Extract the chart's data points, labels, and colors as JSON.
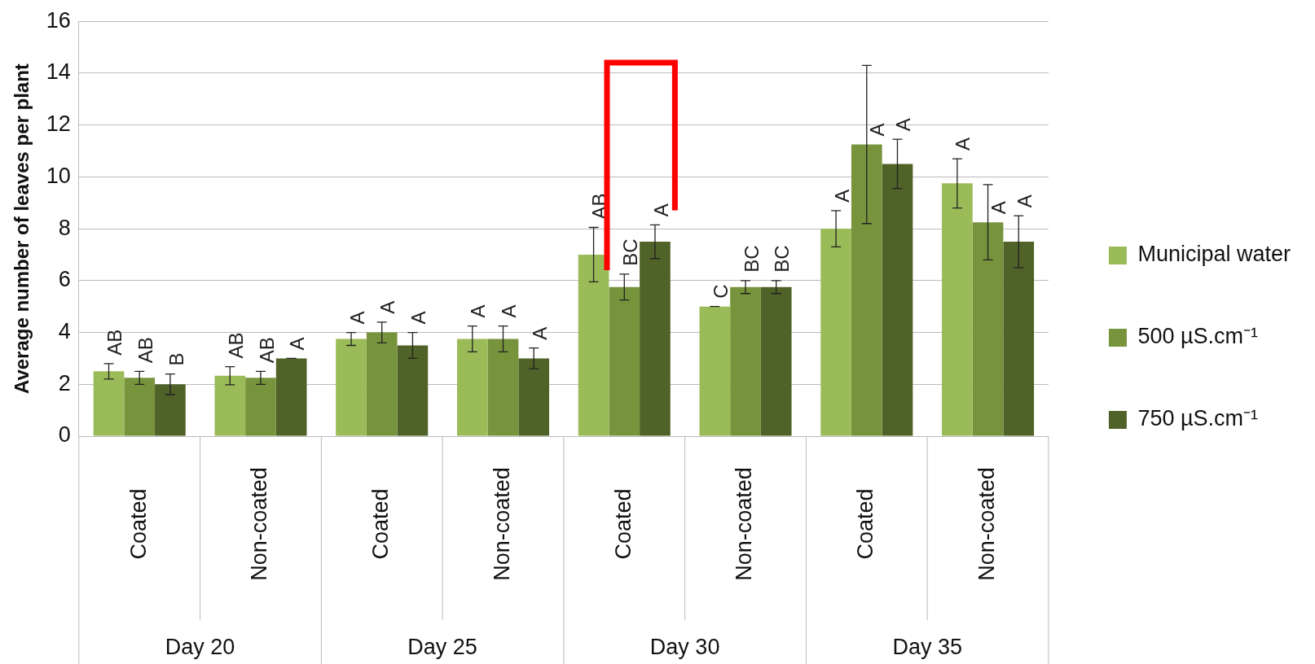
{
  "chart_data": {
    "type": "bar",
    "ylabel": "Average number of leaves per plant",
    "categories": [
      "Coated",
      "Non-coated",
      "Coated",
      "Non-coated",
      "Coated",
      "Non-coated",
      "Coated",
      "Non-coated"
    ],
    "series": [
      {
        "name": "Municipal water",
        "color": "#9bbb59",
        "values": [
          2.5,
          2.33,
          3.75,
          3.75,
          7.0,
          5.0,
          8.0,
          9.75
        ],
        "errors": [
          0.3,
          0.35,
          0.25,
          0.5,
          1.05,
          0,
          0.7,
          0.95
        ],
        "value_labels": [
          "AB",
          "AB",
          "A",
          "A",
          "AB",
          "C",
          "A",
          "A"
        ]
      },
      {
        "name": "500 µS.cm⁻¹",
        "color": "#77933c",
        "values": [
          2.25,
          2.25,
          4.0,
          3.75,
          5.75,
          5.75,
          11.25,
          8.25
        ],
        "errors": [
          0.25,
          0.25,
          0.4,
          0.5,
          0.5,
          0.25,
          3.05,
          1.45
        ],
        "value_labels": [
          "AB",
          "AB",
          "A",
          "A",
          "BC",
          "BC",
          "A",
          "A"
        ]
      },
      {
        "name": "750 µS.cm⁻¹",
        "color": "#4f6228",
        "values": [
          2.0,
          3.0,
          3.5,
          3.0,
          7.5,
          5.75,
          10.5,
          7.5
        ],
        "errors": [
          0.4,
          0,
          0.5,
          0.4,
          0.65,
          0.25,
          0.95,
          1.0
        ],
        "value_labels": [
          "B",
          "A",
          "A",
          "A",
          "A",
          "BC",
          "A",
          "A"
        ]
      }
    ],
    "annotations": [
      "Day 20",
      "Day 25",
      "Day 30",
      "Day 35"
    ],
    "ylim": [
      0,
      16
    ],
    "yticks": [
      0,
      2,
      4,
      6,
      8,
      10,
      12,
      14,
      16
    ],
    "grid": "y",
    "legend": "right"
  }
}
